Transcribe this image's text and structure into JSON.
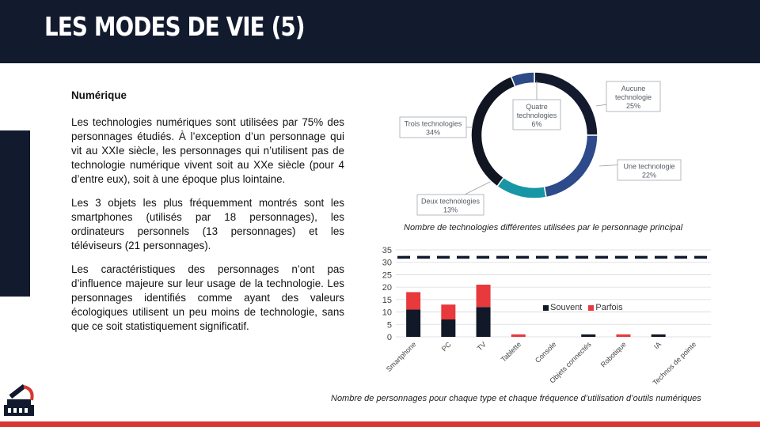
{
  "slide": {
    "title": "LES MODES DE VIE (5)",
    "heading": "Numérique",
    "paragraphs": [
      "Les technologies numériques sont utilisées par 75% des personnages étudiés. À l’exception d’un personnage qui vit au XXIe siècle, les personnages qui n’utilisent pas de technologie numérique vivent soit au XXe siècle (pour 4 d’entre eux), soit à une époque plus lointaine.",
      "Les 3 objets les plus fréquemment montrés sont les smartphones (utilisés par 18 personnages), les ordinateurs personnels (13 personnages) et les téléviseurs (21 personnages).",
      "Les caractéristiques des personnages n’ont pas d’influence majeure sur leur usage de la technologie. Les personnages identifiés comme ayant des valeurs écologiques utilisent un peu moins de technologie, sans que ce soit statistiquement significatif."
    ],
    "logo_icon": "telescope-logo-icon",
    "colors": {
      "header": "#121a2e",
      "accent": "#d93632"
    }
  },
  "chart_data": [
    {
      "type": "pie",
      "style": "donut",
      "caption": "Nombre de technologies différentes utilisées par le personnage principal",
      "slices": [
        {
          "label": "Aucune technologie",
          "value": 25,
          "display": "25%",
          "color": "#131a2e"
        },
        {
          "label": "Une technologie",
          "value": 22,
          "display": "22%",
          "color": "#2d4a8a"
        },
        {
          "label": "Deux technologies",
          "value": 13,
          "display": "13%",
          "color": "#1896a6"
        },
        {
          "label": "Trois technologies",
          "value": 34,
          "display": "34%",
          "color": "#111522"
        },
        {
          "label": "Quatre technologies",
          "value": 6,
          "display": "6%",
          "color": "#2b4a86"
        }
      ]
    },
    {
      "type": "bar",
      "stacked": true,
      "caption": "Nombre de personnages pour chaque type et chaque fréquence d’utilisation d’outils numériques",
      "categories": [
        "Smartphone",
        "PC",
        "TV",
        "Tablette",
        "Console",
        "Objets connectés",
        "Robotique",
        "IA",
        "Technos de pointe"
      ],
      "series": [
        {
          "name": "Souvent",
          "color": "#111827",
          "values": [
            11,
            7,
            12,
            0,
            0,
            1,
            0,
            1,
            0
          ]
        },
        {
          "name": "Parfois",
          "color": "#e8393d",
          "values": [
            7,
            6,
            9,
            1,
            0,
            0,
            1,
            0,
            0
          ]
        }
      ],
      "reference_line": 32,
      "yticks": [
        "0",
        "5",
        "10",
        "15",
        "20",
        "25",
        "30",
        "35"
      ],
      "ylim": [
        0,
        35
      ],
      "grid": true,
      "legend": "right"
    }
  ]
}
